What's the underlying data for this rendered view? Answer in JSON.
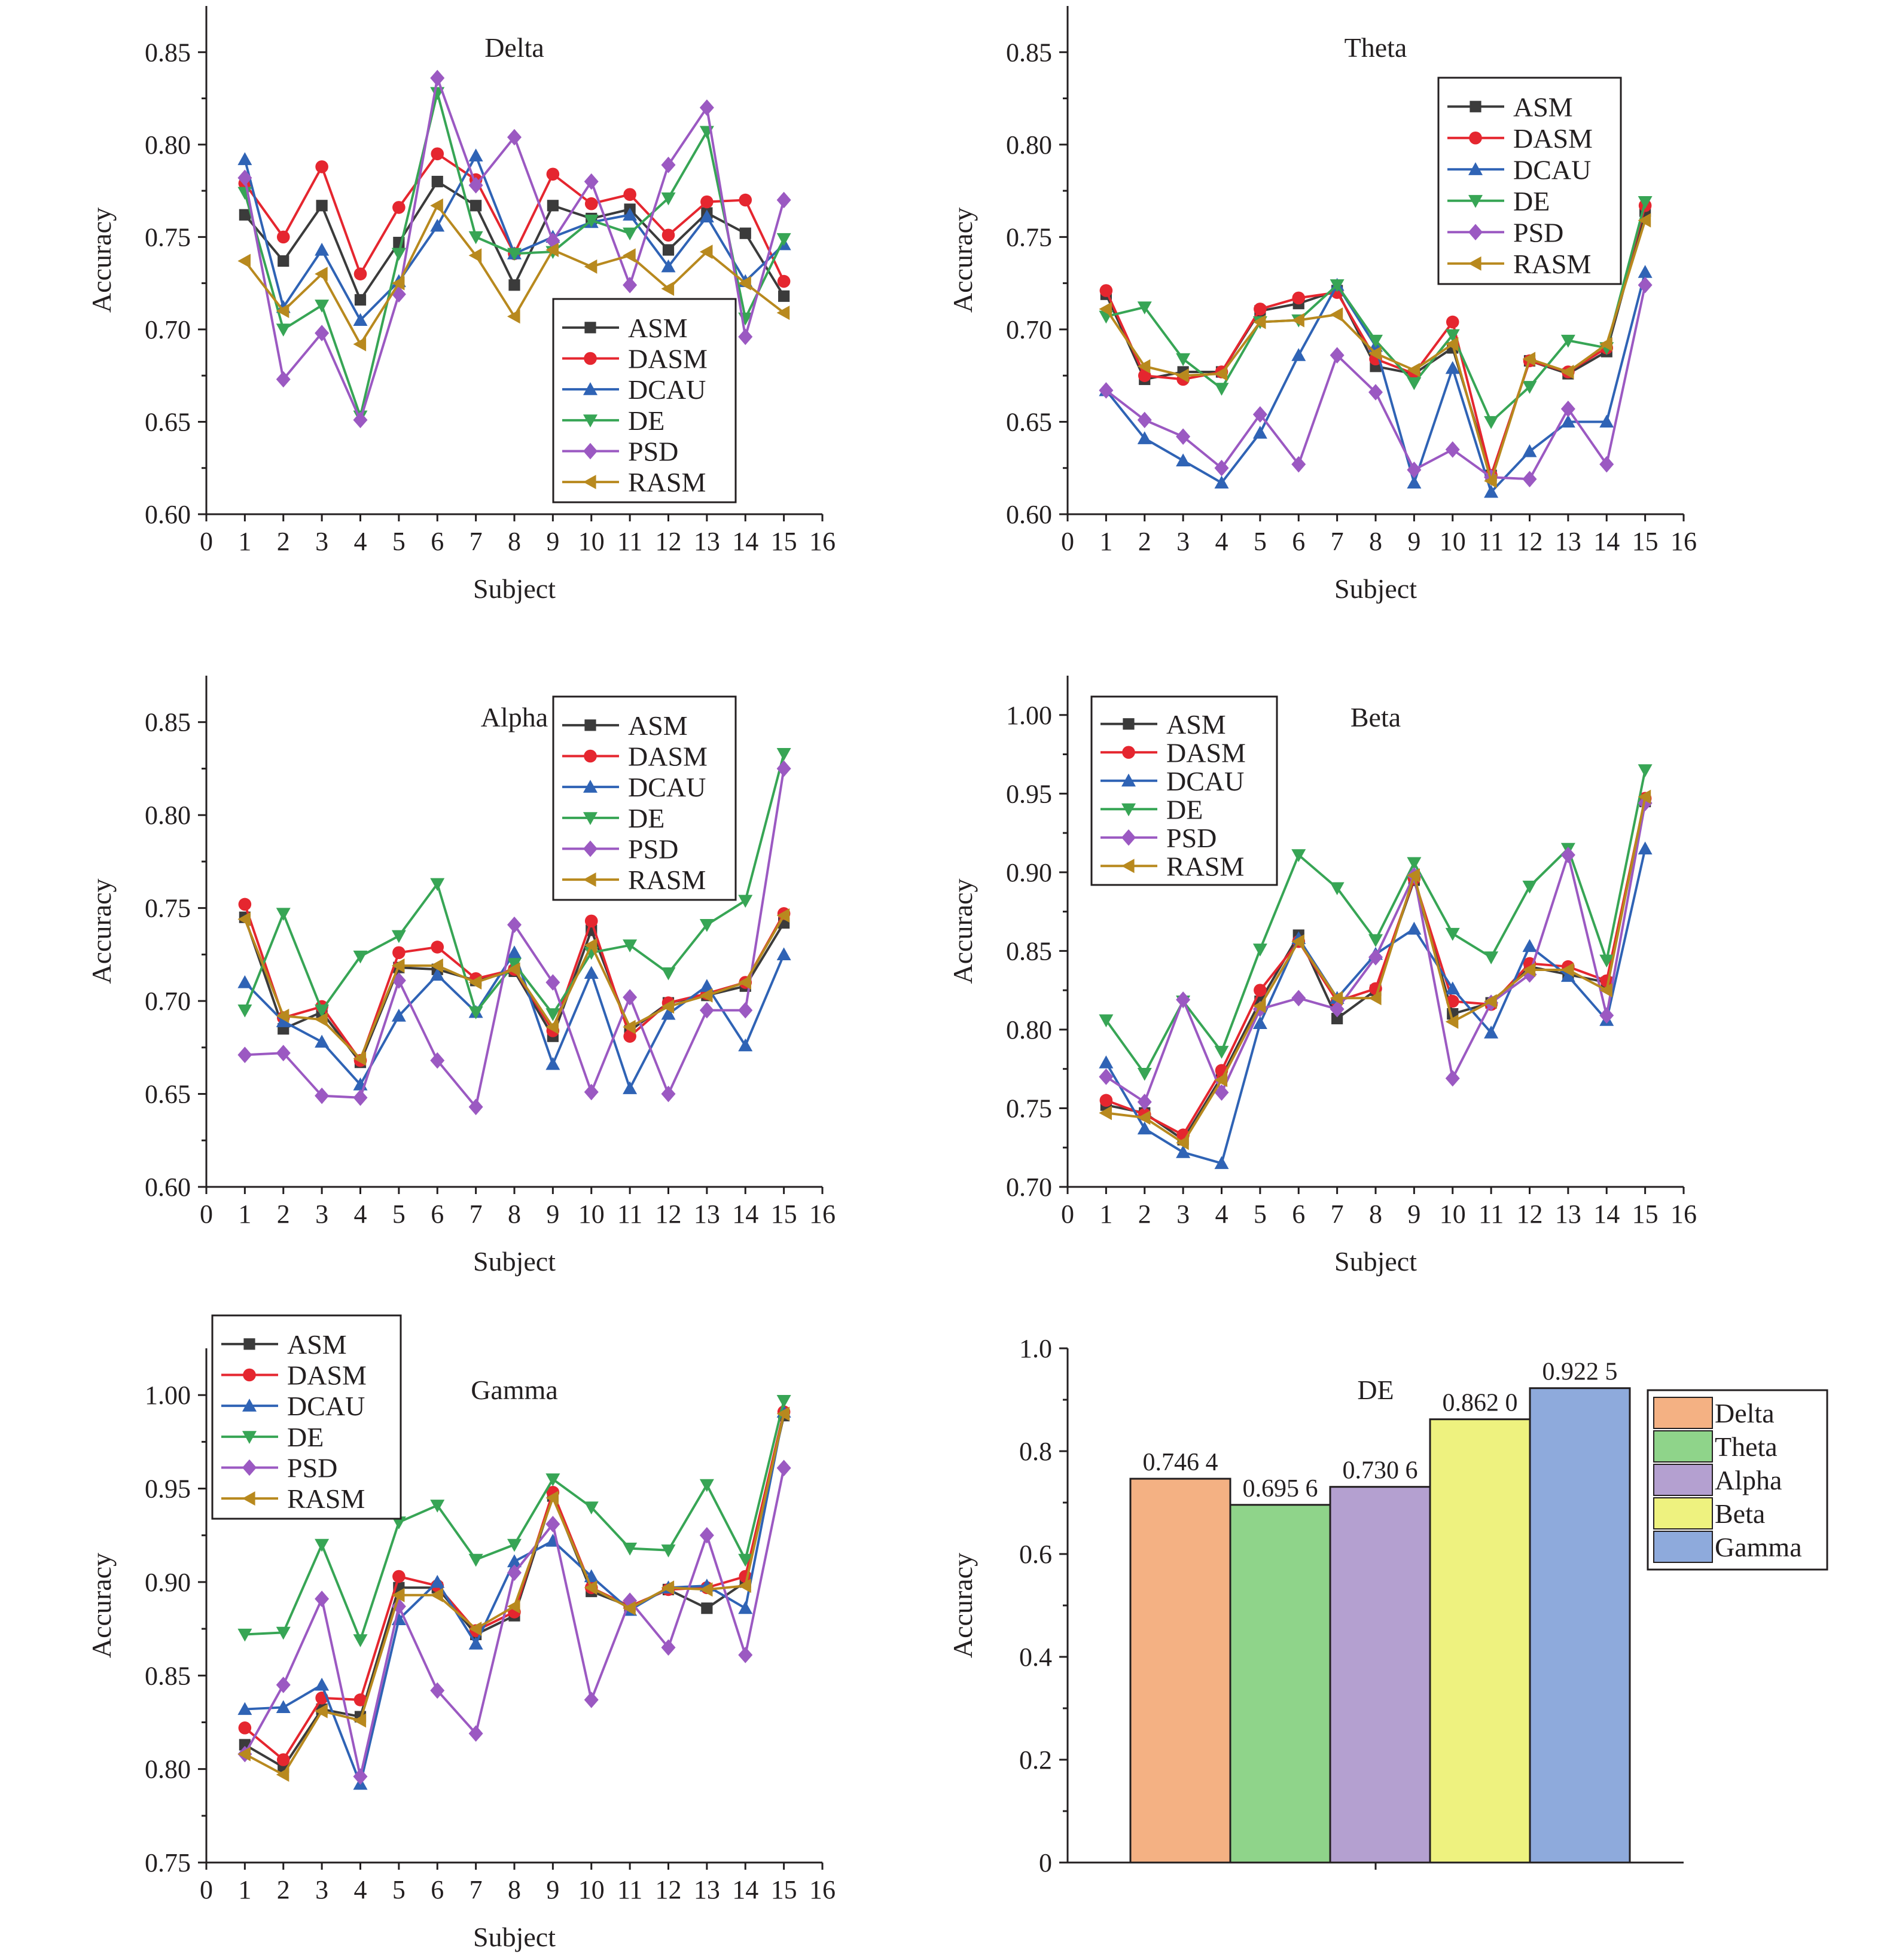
{
  "chart_data": [
    {
      "type": "line",
      "title": "Delta",
      "xlabel": "Subject",
      "ylabel": "Accuracy",
      "xlim": [
        0,
        16
      ],
      "ylim": [
        0.6,
        0.875
      ],
      "xticks": [
        0,
        1,
        2,
        3,
        4,
        5,
        6,
        7,
        8,
        9,
        10,
        11,
        12,
        13,
        14,
        15,
        16
      ],
      "yticks": [
        "0.60",
        "0.65",
        "0.70",
        "0.75",
        "0.80",
        "0.85"
      ],
      "legend_position": "bottom-right",
      "x": [
        1,
        2,
        3,
        4,
        5,
        6,
        7,
        8,
        9,
        10,
        11,
        12,
        13,
        14,
        15
      ],
      "series": [
        {
          "name": "ASM",
          "values": [
            0.762,
            0.737,
            0.767,
            0.716,
            0.747,
            0.78,
            0.767,
            0.724,
            0.767,
            0.76,
            0.765,
            0.743,
            0.763,
            0.752,
            0.718
          ]
        },
        {
          "name": "DASM",
          "values": [
            0.779,
            0.75,
            0.788,
            0.73,
            0.766,
            0.795,
            0.781,
            0.741,
            0.784,
            0.768,
            0.773,
            0.751,
            0.769,
            0.77,
            0.726
          ]
        },
        {
          "name": "DCAU",
          "values": [
            0.792,
            0.712,
            0.743,
            0.705,
            0.726,
            0.756,
            0.794,
            0.741,
            0.75,
            0.758,
            0.762,
            0.734,
            0.761,
            0.726,
            0.746
          ]
        },
        {
          "name": "DE",
          "values": [
            0.774,
            0.7,
            0.713,
            0.653,
            0.741,
            0.828,
            0.75,
            0.741,
            0.742,
            0.759,
            0.752,
            0.771,
            0.807,
            0.706,
            0.749
          ]
        },
        {
          "name": "PSD",
          "values": [
            0.782,
            0.673,
            0.698,
            0.651,
            0.719,
            0.836,
            0.778,
            0.804,
            0.748,
            0.78,
            0.724,
            0.789,
            0.82,
            0.696,
            0.77
          ]
        },
        {
          "name": "RASM",
          "values": [
            0.737,
            0.71,
            0.73,
            0.692,
            0.725,
            0.767,
            0.74,
            0.707,
            0.743,
            0.734,
            0.74,
            0.722,
            0.742,
            0.725,
            0.709
          ]
        }
      ]
    },
    {
      "type": "line",
      "title": "Theta",
      "xlabel": "Subject",
      "ylabel": "Accuracy",
      "xlim": [
        0,
        16
      ],
      "ylim": [
        0.6,
        0.875
      ],
      "xticks": [
        0,
        1,
        2,
        3,
        4,
        5,
        6,
        7,
        8,
        9,
        10,
        11,
        12,
        13,
        14,
        15,
        16
      ],
      "yticks": [
        "0.60",
        "0.65",
        "0.70",
        "0.75",
        "0.80",
        "0.85"
      ],
      "legend_position": "top-right",
      "x": [
        1,
        2,
        3,
        4,
        5,
        6,
        7,
        8,
        9,
        10,
        11,
        12,
        13,
        14,
        15
      ],
      "series": [
        {
          "name": "ASM",
          "values": [
            0.719,
            0.673,
            0.677,
            0.677,
            0.71,
            0.714,
            0.721,
            0.68,
            0.676,
            0.69,
            0.621,
            0.683,
            0.676,
            0.688,
            0.764
          ]
        },
        {
          "name": "DASM",
          "values": [
            0.721,
            0.675,
            0.673,
            0.677,
            0.711,
            0.717,
            0.72,
            0.684,
            0.676,
            0.704,
            0.621,
            0.683,
            0.677,
            0.69,
            0.767
          ]
        },
        {
          "name": "DCAU",
          "values": [
            0.667,
            0.641,
            0.629,
            0.617,
            0.644,
            0.686,
            0.724,
            0.691,
            0.617,
            0.679,
            0.612,
            0.634,
            0.65,
            0.65,
            0.731
          ]
        },
        {
          "name": "DE",
          "values": [
            0.707,
            0.712,
            0.684,
            0.668,
            0.704,
            0.705,
            0.724,
            0.694,
            0.671,
            0.697,
            0.65,
            0.669,
            0.694,
            0.69,
            0.769
          ]
        },
        {
          "name": "PSD",
          "values": [
            0.667,
            0.651,
            0.642,
            0.625,
            0.654,
            0.627,
            0.686,
            0.666,
            0.624,
            0.635,
            0.62,
            0.619,
            0.657,
            0.627,
            0.724
          ]
        },
        {
          "name": "RASM",
          "values": [
            0.711,
            0.68,
            0.675,
            0.676,
            0.704,
            0.705,
            0.708,
            0.687,
            0.678,
            0.692,
            0.618,
            0.684,
            0.677,
            0.692,
            0.759
          ]
        }
      ]
    },
    {
      "type": "line",
      "title": "Alpha",
      "xlabel": "Subject",
      "ylabel": "Accuracy",
      "xlim": [
        0,
        16
      ],
      "ylim": [
        0.6,
        0.875
      ],
      "xticks": [
        0,
        1,
        2,
        3,
        4,
        5,
        6,
        7,
        8,
        9,
        10,
        11,
        12,
        13,
        14,
        15,
        16
      ],
      "yticks": [
        "0.60",
        "0.65",
        "0.70",
        "0.75",
        "0.80",
        "0.85"
      ],
      "legend_position": "top-right",
      "x": [
        1,
        2,
        3,
        4,
        5,
        6,
        7,
        8,
        9,
        10,
        11,
        12,
        13,
        14,
        15
      ],
      "series": [
        {
          "name": "ASM",
          "values": [
            0.745,
            0.685,
            0.694,
            0.667,
            0.718,
            0.717,
            0.711,
            0.716,
            0.681,
            0.738,
            0.684,
            0.699,
            0.703,
            0.708,
            0.742
          ]
        },
        {
          "name": "DASM",
          "values": [
            0.752,
            0.691,
            0.697,
            0.668,
            0.726,
            0.729,
            0.712,
            0.717,
            0.684,
            0.743,
            0.681,
            0.699,
            0.704,
            0.71,
            0.747
          ]
        },
        {
          "name": "DCAU",
          "values": [
            0.71,
            0.689,
            0.678,
            0.655,
            0.692,
            0.714,
            0.694,
            0.726,
            0.666,
            0.715,
            0.653,
            0.693,
            0.708,
            0.676,
            0.725
          ]
        },
        {
          "name": "DE",
          "values": [
            0.695,
            0.747,
            0.695,
            0.724,
            0.735,
            0.763,
            0.694,
            0.72,
            0.693,
            0.726,
            0.73,
            0.715,
            0.741,
            0.754,
            0.833
          ]
        },
        {
          "name": "PSD",
          "values": [
            0.671,
            0.672,
            0.649,
            0.648,
            0.711,
            0.668,
            0.643,
            0.741,
            0.71,
            0.651,
            0.702,
            0.65,
            0.695,
            0.695,
            0.825
          ]
        },
        {
          "name": "RASM",
          "values": [
            0.744,
            0.692,
            0.69,
            0.669,
            0.719,
            0.719,
            0.71,
            0.717,
            0.686,
            0.73,
            0.686,
            0.697,
            0.703,
            0.71,
            0.746
          ]
        }
      ]
    },
    {
      "type": "line",
      "title": "Beta",
      "xlabel": "Subject",
      "ylabel": "Accuracy",
      "xlim": [
        0,
        16
      ],
      "ylim": [
        0.7,
        1.025
      ],
      "xticks": [
        0,
        1,
        2,
        3,
        4,
        5,
        6,
        7,
        8,
        9,
        10,
        11,
        12,
        13,
        14,
        15,
        16
      ],
      "yticks": [
        "0.70",
        "0.75",
        "0.80",
        "0.85",
        "0.90",
        "0.95",
        "1.00"
      ],
      "legend_position": "top-left",
      "x": [
        1,
        2,
        3,
        4,
        5,
        6,
        7,
        8,
        9,
        10,
        11,
        12,
        13,
        14,
        15
      ],
      "series": [
        {
          "name": "ASM",
          "values": [
            0.752,
            0.747,
            0.73,
            0.77,
            0.818,
            0.86,
            0.807,
            0.825,
            0.895,
            0.81,
            0.817,
            0.84,
            0.835,
            0.83,
            0.945
          ]
        },
        {
          "name": "DASM",
          "values": [
            0.755,
            0.746,
            0.733,
            0.774,
            0.825,
            0.856,
            0.818,
            0.826,
            0.896,
            0.818,
            0.816,
            0.842,
            0.84,
            0.831,
            0.947
          ]
        },
        {
          "name": "DCAU",
          "values": [
            0.779,
            0.737,
            0.722,
            0.715,
            0.804,
            0.858,
            0.82,
            0.848,
            0.864,
            0.826,
            0.798,
            0.853,
            0.834,
            0.806,
            0.915
          ]
        },
        {
          "name": "DE",
          "values": [
            0.806,
            0.772,
            0.818,
            0.786,
            0.851,
            0.911,
            0.89,
            0.857,
            0.906,
            0.861,
            0.846,
            0.891,
            0.915,
            0.844,
            0.965
          ]
        },
        {
          "name": "PSD",
          "values": [
            0.77,
            0.754,
            0.819,
            0.76,
            0.813,
            0.82,
            0.813,
            0.846,
            0.898,
            0.769,
            0.817,
            0.835,
            0.911,
            0.809,
            0.944
          ]
        },
        {
          "name": "RASM",
          "values": [
            0.747,
            0.744,
            0.728,
            0.768,
            0.815,
            0.856,
            0.82,
            0.82,
            0.898,
            0.805,
            0.818,
            0.838,
            0.838,
            0.825,
            0.948
          ]
        }
      ]
    },
    {
      "type": "line",
      "title": "Gamma",
      "xlabel": "Subject",
      "ylabel": "Accuracy",
      "xlim": [
        0,
        16
      ],
      "ylim": [
        0.75,
        1.025
      ],
      "xticks": [
        0,
        1,
        2,
        3,
        4,
        5,
        6,
        7,
        8,
        9,
        10,
        11,
        12,
        13,
        14,
        15,
        16
      ],
      "yticks": [
        "0.75",
        "0.80",
        "0.85",
        "0.90",
        "0.95",
        "1.00"
      ],
      "legend_position": "top-left",
      "x": [
        1,
        2,
        3,
        4,
        5,
        6,
        7,
        8,
        9,
        10,
        11,
        12,
        13,
        14,
        15
      ],
      "series": [
        {
          "name": "ASM",
          "values": [
            0.813,
            0.801,
            0.832,
            0.828,
            0.897,
            0.897,
            0.872,
            0.882,
            0.946,
            0.895,
            0.887,
            0.896,
            0.886,
            0.9,
            0.989
          ]
        },
        {
          "name": "DASM",
          "values": [
            0.822,
            0.805,
            0.838,
            0.837,
            0.903,
            0.898,
            0.874,
            0.884,
            0.948,
            0.897,
            0.887,
            0.896,
            0.897,
            0.903,
            0.991
          ]
        },
        {
          "name": "DCAU",
          "values": [
            0.832,
            0.833,
            0.845,
            0.792,
            0.88,
            0.9,
            0.867,
            0.911,
            0.922,
            0.903,
            0.885,
            0.897,
            0.898,
            0.886,
            0.991
          ]
        },
        {
          "name": "DE",
          "values": [
            0.872,
            0.873,
            0.92,
            0.869,
            0.932,
            0.941,
            0.912,
            0.92,
            0.955,
            0.94,
            0.918,
            0.917,
            0.952,
            0.912,
            0.997
          ]
        },
        {
          "name": "PSD",
          "values": [
            0.808,
            0.845,
            0.891,
            0.796,
            0.887,
            0.842,
            0.819,
            0.905,
            0.931,
            0.837,
            0.89,
            0.865,
            0.925,
            0.861,
            0.961
          ]
        },
        {
          "name": "RASM",
          "values": [
            0.808,
            0.797,
            0.831,
            0.826,
            0.893,
            0.893,
            0.875,
            0.887,
            0.945,
            0.897,
            0.886,
            0.897,
            0.896,
            0.898,
            0.99
          ]
        }
      ]
    },
    {
      "type": "bar",
      "title": "DE",
      "xlabel": "",
      "ylabel": "Accuracy",
      "ylim": [
        0,
        1.0
      ],
      "yticks": [
        "0",
        "0.2",
        "0.4",
        "0.6",
        "0.8",
        "1.0"
      ],
      "legend_position": "top-right",
      "categories": [
        "Delta",
        "Theta",
        "Alpha",
        "Beta",
        "Gamma"
      ],
      "values": [
        0.7464,
        0.6956,
        0.7306,
        0.862,
        0.9225
      ],
      "value_labels": [
        "0.746 4",
        "0.695 6",
        "0.730 6",
        "0.862 0",
        "0.922 5"
      ],
      "colors": [
        "#f4b183",
        "#8fd48a",
        "#b4a0d0",
        "#eef27f",
        "#8eaadc"
      ]
    }
  ],
  "series_colors": {
    "ASM": "#3b3b3b",
    "DASM": "#e5262f",
    "DCAU": "#2f63b5",
    "DE": "#37a555",
    "PSD": "#9b59c2",
    "RASM": "#b8891e"
  },
  "series_markers": {
    "ASM": "square",
    "DASM": "circle",
    "DCAU": "triangle-up",
    "DE": "triangle-down",
    "PSD": "diamond",
    "RASM": "triangle-left"
  }
}
